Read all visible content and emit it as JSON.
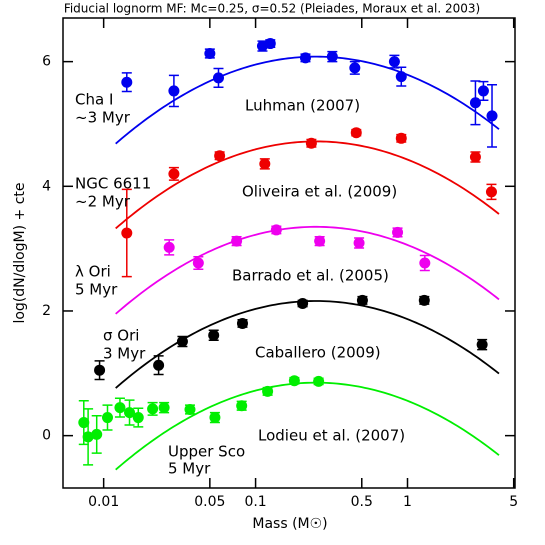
{
  "chart_data": {
    "type": "scatter",
    "title": "Fiducial lognorm MF: Mc=0.25, σ=0.52 (Pleiades, Moraux et al. 2003)",
    "x_label": "Mass (M☉)",
    "y_label": "log(dN/dlogM) + cte",
    "log_x": true,
    "xlim": [
      0.0054,
      5.1
    ],
    "ylim": [
      -0.84,
      6.7
    ],
    "xticks": [
      0.01,
      0.05,
      0.1,
      0.5,
      1,
      5
    ],
    "yticks": [
      0,
      2,
      4,
      6
    ],
    "fit": {
      "mc": 0.25,
      "sigma": 0.52,
      "range": [
        0.012,
        4
      ]
    },
    "series": [
      {
        "name": "Luhman (2007)",
        "region": [
          "Cha I",
          "~3 Myr"
        ],
        "color": "#0000ee",
        "fit_peak": 6.08,
        "x": [
          0.0142,
          0.029,
          0.05,
          0.057,
          0.111,
          0.125,
          0.213,
          0.32,
          0.45,
          0.82,
          0.91,
          2.8,
          3.16,
          3.6
        ],
        "values": [
          5.67,
          5.53,
          6.13,
          5.74,
          6.25,
          6.29,
          6.06,
          6.08,
          5.9,
          6.0,
          5.76,
          5.34,
          5.53,
          5.13
        ],
        "errors": [
          0.15,
          0.25,
          0.07,
          0.15,
          0.08,
          0.06,
          0.06,
          0.08,
          0.1,
          0.1,
          0.15,
          0.35,
          0.15,
          0.5
        ]
      },
      {
        "name": "Oliveira et al. (2009)",
        "region": [
          "NGC 6611",
          "~2 Myr"
        ],
        "color": "#ee0000",
        "fit_peak": 4.72,
        "x": [
          0.0142,
          0.029,
          0.058,
          0.115,
          0.233,
          0.46,
          0.91,
          2.8,
          3.57
        ],
        "values": [
          3.25,
          4.2,
          4.49,
          4.36,
          4.69,
          4.86,
          4.77,
          4.47,
          3.91
        ],
        "errors": [
          0.7,
          0.1,
          0.06,
          0.08,
          0.06,
          0.05,
          0.06,
          0.08,
          0.12
        ]
      },
      {
        "name": "Barrado et al. (2005)",
        "region": [
          "λ Ori",
          "5 Myr"
        ],
        "color": "#ee00ee",
        "fit_peak": 3.35,
        "x": [
          0.027,
          0.042,
          0.075,
          0.137,
          0.264,
          0.48,
          0.86,
          1.3
        ],
        "values": [
          3.02,
          2.77,
          3.12,
          3.3,
          3.12,
          3.09,
          3.26,
          2.77
        ],
        "errors": [
          0.12,
          0.1,
          0.07,
          0.06,
          0.07,
          0.08,
          0.07,
          0.12
        ]
      },
      {
        "name": "Caballero (2009)",
        "region": [
          "σ Ori",
          "3 Myr"
        ],
        "color": "#000000",
        "fit_peak": 2.16,
        "x": [
          0.0094,
          0.023,
          0.033,
          0.053,
          0.082,
          0.204,
          0.505,
          1.29,
          3.1
        ],
        "values": [
          1.05,
          1.13,
          1.51,
          1.61,
          1.8,
          2.12,
          2.17,
          2.17,
          1.46
        ],
        "errors": [
          0.15,
          0.15,
          0.08,
          0.08,
          0.06,
          0.05,
          0.06,
          0.06,
          0.08
        ]
      },
      {
        "name": "Lodieu et al. (2007)",
        "region": [
          "Upper Sco",
          "5 Myr"
        ],
        "color": "#00ee00",
        "fit_peak": 0.85,
        "x": [
          0.0074,
          0.0079,
          0.009,
          0.0106,
          0.0128,
          0.0148,
          0.0169,
          0.021,
          0.025,
          0.037,
          0.054,
          0.081,
          0.12,
          0.18,
          0.26
        ],
        "values": [
          0.21,
          -0.02,
          0.02,
          0.29,
          0.45,
          0.37,
          0.29,
          0.43,
          0.45,
          0.42,
          0.29,
          0.48,
          0.71,
          0.88,
          0.87
        ],
        "errors": [
          0.35,
          0.45,
          0.3,
          0.2,
          0.15,
          0.2,
          0.15,
          0.1,
          0.08,
          0.07,
          0.08,
          0.07,
          0.06,
          0.05,
          0.05
        ]
      }
    ]
  }
}
